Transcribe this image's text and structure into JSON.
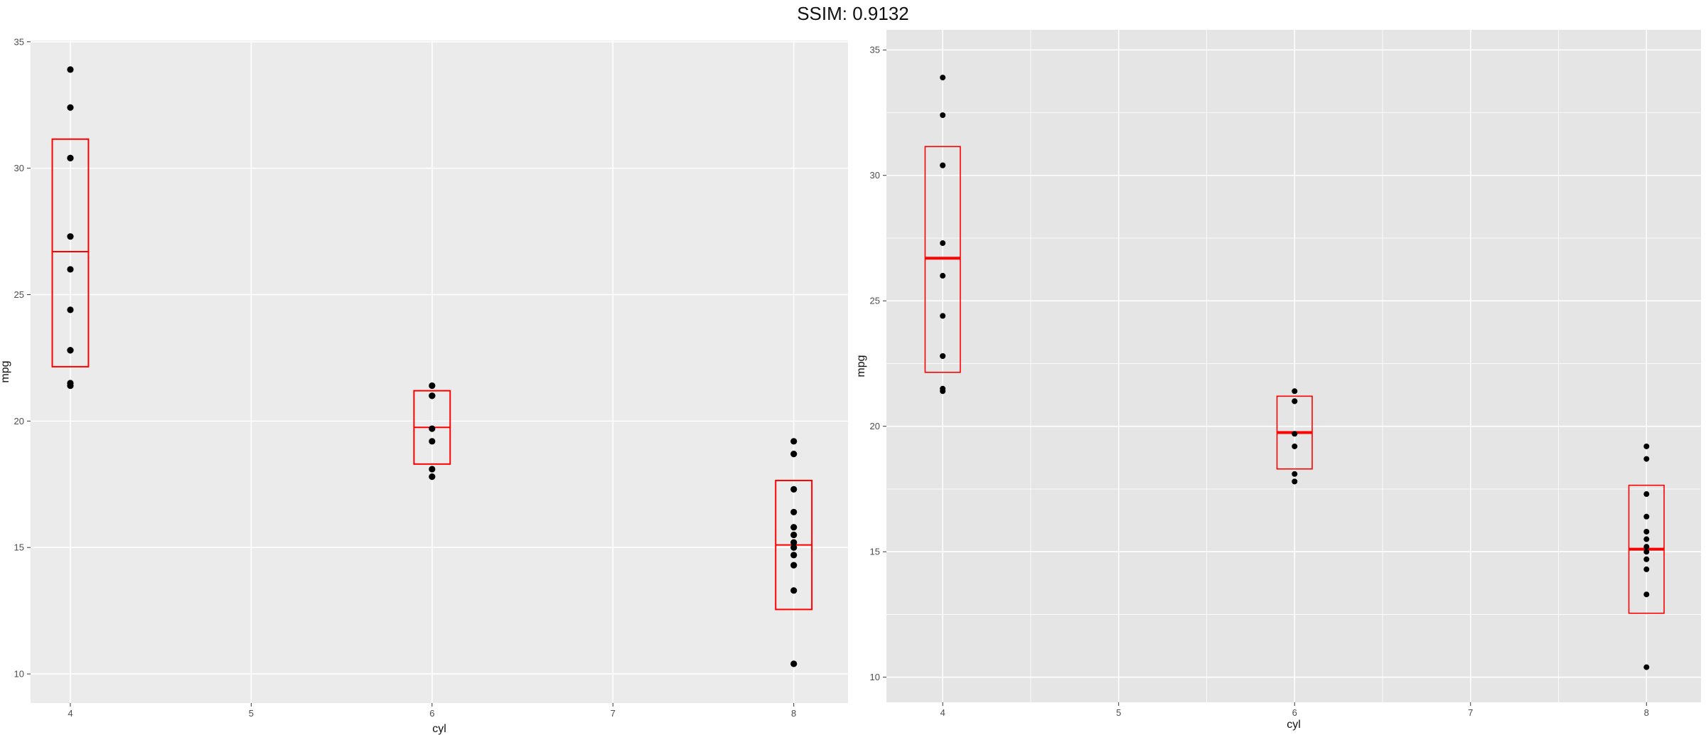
{
  "title": "SSIM: 0.9132",
  "colors": {
    "panel_left": "#ebebeb",
    "panel_right": "#e5e5e5",
    "grid": "#ffffff",
    "box": "#ff0000",
    "point": "#000000"
  },
  "chart_data": [
    {
      "type": "scatter",
      "overlay": "boxplot",
      "xlabel": "cyl",
      "ylabel": "mpg",
      "xlim": [
        3.78,
        8.3
      ],
      "ylim": [
        8.85,
        35.05
      ],
      "xticks": [
        4,
        5,
        6,
        7,
        8
      ],
      "xtick_labels": [
        "4",
        "5",
        "6",
        "7",
        "8"
      ],
      "yticks": [
        10,
        15,
        20,
        25,
        30,
        35
      ],
      "ytick_labels": [
        "10",
        "15",
        "20",
        "25",
        "30",
        "35"
      ],
      "grid": true,
      "points": [
        {
          "x": 4,
          "y": 33.9
        },
        {
          "x": 4,
          "y": 32.4
        },
        {
          "x": 4,
          "y": 30.4
        },
        {
          "x": 4,
          "y": 30.4
        },
        {
          "x": 4,
          "y": 27.3
        },
        {
          "x": 4,
          "y": 26.0
        },
        {
          "x": 4,
          "y": 24.4
        },
        {
          "x": 4,
          "y": 22.8
        },
        {
          "x": 4,
          "y": 22.8
        },
        {
          "x": 4,
          "y": 21.5
        },
        {
          "x": 4,
          "y": 21.4
        },
        {
          "x": 6,
          "y": 21.4
        },
        {
          "x": 6,
          "y": 21.0
        },
        {
          "x": 6,
          "y": 21.0
        },
        {
          "x": 6,
          "y": 19.7
        },
        {
          "x": 6,
          "y": 19.2
        },
        {
          "x": 6,
          "y": 18.1
        },
        {
          "x": 6,
          "y": 17.8
        },
        {
          "x": 8,
          "y": 19.2
        },
        {
          "x": 8,
          "y": 18.7
        },
        {
          "x": 8,
          "y": 17.3
        },
        {
          "x": 8,
          "y": 16.4
        },
        {
          "x": 8,
          "y": 15.8
        },
        {
          "x": 8,
          "y": 15.5
        },
        {
          "x": 8,
          "y": 15.2
        },
        {
          "x": 8,
          "y": 15.0
        },
        {
          "x": 8,
          "y": 14.7
        },
        {
          "x": 8,
          "y": 14.3
        },
        {
          "x": 8,
          "y": 13.3
        },
        {
          "x": 8,
          "y": 10.4
        }
      ],
      "boxes": [
        {
          "x": 4,
          "lower": 22.15,
          "median": 26.7,
          "upper": 31.15
        },
        {
          "x": 6,
          "lower": 18.3,
          "median": 19.75,
          "upper": 21.2
        },
        {
          "x": 8,
          "lower": 12.55,
          "median": 15.1,
          "upper": 17.65
        }
      ]
    },
    {
      "type": "scatter",
      "overlay": "boxplot",
      "xlabel": "cyl",
      "ylabel": "mpg",
      "xlim": [
        3.68,
        8.31
      ],
      "ylim": [
        9.0,
        35.8
      ],
      "xticks": [
        4,
        5,
        6,
        7,
        8
      ],
      "xtick_labels": [
        "4",
        "5",
        "6",
        "7",
        "8"
      ],
      "yticks": [
        10,
        15,
        20,
        25,
        30,
        35
      ],
      "ytick_labels": [
        "10",
        "15",
        "20",
        "25",
        "30",
        "35"
      ],
      "grid": true,
      "points": [
        {
          "x": 4,
          "y": 33.9
        },
        {
          "x": 4,
          "y": 32.4
        },
        {
          "x": 4,
          "y": 30.4
        },
        {
          "x": 4,
          "y": 30.4
        },
        {
          "x": 4,
          "y": 27.3
        },
        {
          "x": 4,
          "y": 26.0
        },
        {
          "x": 4,
          "y": 24.4
        },
        {
          "x": 4,
          "y": 22.8
        },
        {
          "x": 4,
          "y": 22.8
        },
        {
          "x": 4,
          "y": 21.5
        },
        {
          "x": 4,
          "y": 21.4
        },
        {
          "x": 6,
          "y": 21.4
        },
        {
          "x": 6,
          "y": 21.0
        },
        {
          "x": 6,
          "y": 21.0
        },
        {
          "x": 6,
          "y": 19.7
        },
        {
          "x": 6,
          "y": 19.2
        },
        {
          "x": 6,
          "y": 18.1
        },
        {
          "x": 6,
          "y": 17.8
        },
        {
          "x": 8,
          "y": 19.2
        },
        {
          "x": 8,
          "y": 18.7
        },
        {
          "x": 8,
          "y": 17.3
        },
        {
          "x": 8,
          "y": 16.4
        },
        {
          "x": 8,
          "y": 15.8
        },
        {
          "x": 8,
          "y": 15.5
        },
        {
          "x": 8,
          "y": 15.2
        },
        {
          "x": 8,
          "y": 15.0
        },
        {
          "x": 8,
          "y": 14.7
        },
        {
          "x": 8,
          "y": 14.3
        },
        {
          "x": 8,
          "y": 13.3
        },
        {
          "x": 8,
          "y": 10.4
        }
      ],
      "boxes": [
        {
          "x": 4,
          "lower": 22.15,
          "median": 26.7,
          "upper": 31.15
        },
        {
          "x": 6,
          "lower": 18.3,
          "median": 19.75,
          "upper": 21.2
        },
        {
          "x": 8,
          "lower": 12.55,
          "median": 15.1,
          "upper": 17.65
        }
      ]
    }
  ]
}
